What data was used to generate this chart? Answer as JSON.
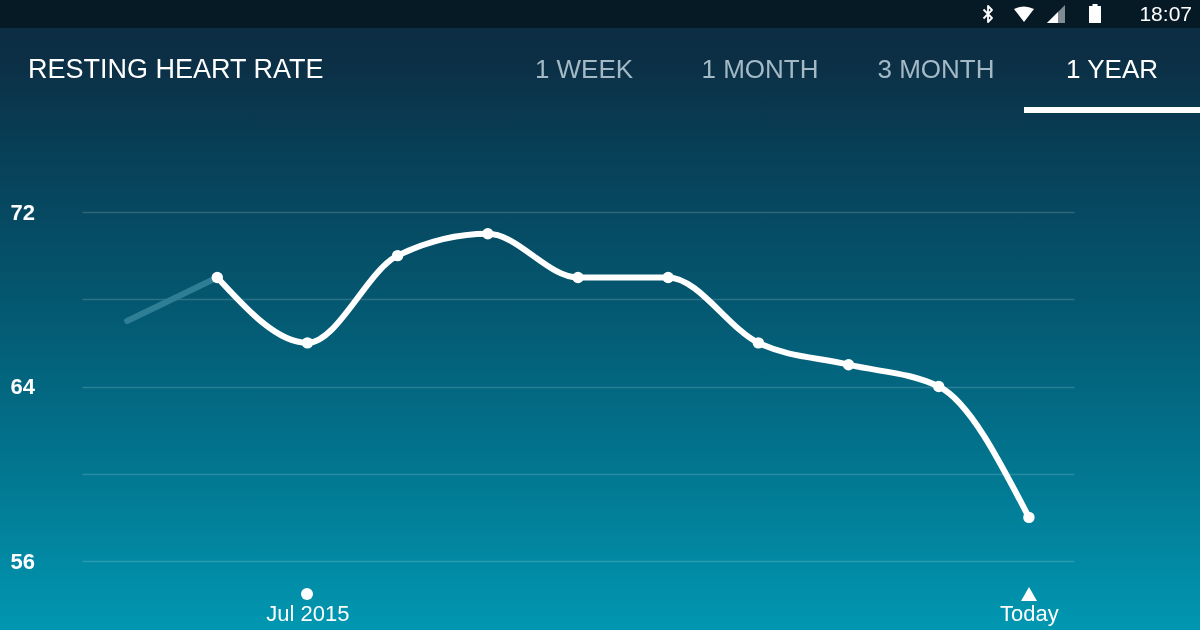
{
  "chart_data": {
    "type": "line",
    "title": "RESTING HEART RATE",
    "categories": [
      null,
      null,
      "Jul 2015",
      null,
      null,
      null,
      null,
      null,
      null,
      null,
      "Today"
    ],
    "series": [
      {
        "color": "#2e7f96",
        "marker": "none",
        "values": [
          67,
          69,
          null,
          null,
          null,
          null,
          null,
          null,
          null,
          null,
          null
        ]
      },
      {
        "color": "#ffffff",
        "values": [
          null,
          69,
          66,
          70,
          71,
          69,
          69,
          66,
          65,
          64,
          58
        ]
      }
    ],
    "ylim": [
      56,
      72
    ],
    "yticks": [
      56,
      {
        "value": 60,
        "label": null
      },
      64,
      {
        "value": 68,
        "label": null
      },
      72
    ],
    "grid": "y",
    "marker": "circle",
    "line_style": "solid",
    "annotations": [
      "1 WEEK",
      "1 MONTH",
      "3 MONTH",
      "1 YEAR",
      "18:07"
    ]
  }
}
